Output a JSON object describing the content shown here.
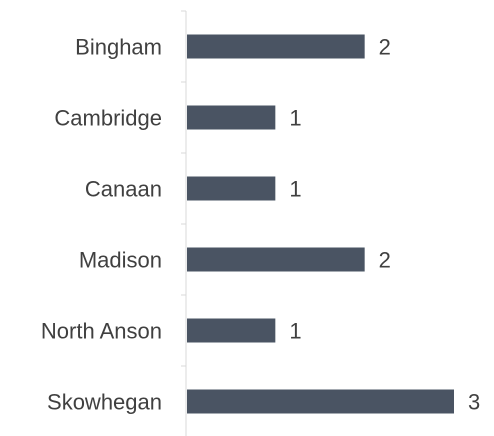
{
  "chart_data": {
    "type": "bar",
    "orientation": "horizontal",
    "categories": [
      "Bingham",
      "Cambridge",
      "Canaan",
      "Madison",
      "North Anson",
      "Skowhegan"
    ],
    "values": [
      2,
      1,
      1,
      2,
      1,
      3
    ],
    "data_labels": [
      "2",
      "1",
      "1",
      "2",
      "1",
      "3"
    ],
    "xlim": [
      0,
      3
    ],
    "grid": false,
    "legend": "none",
    "colors": {
      "bar": "#4a5463",
      "axis": "#d9d9d9",
      "text": "#404040"
    }
  }
}
